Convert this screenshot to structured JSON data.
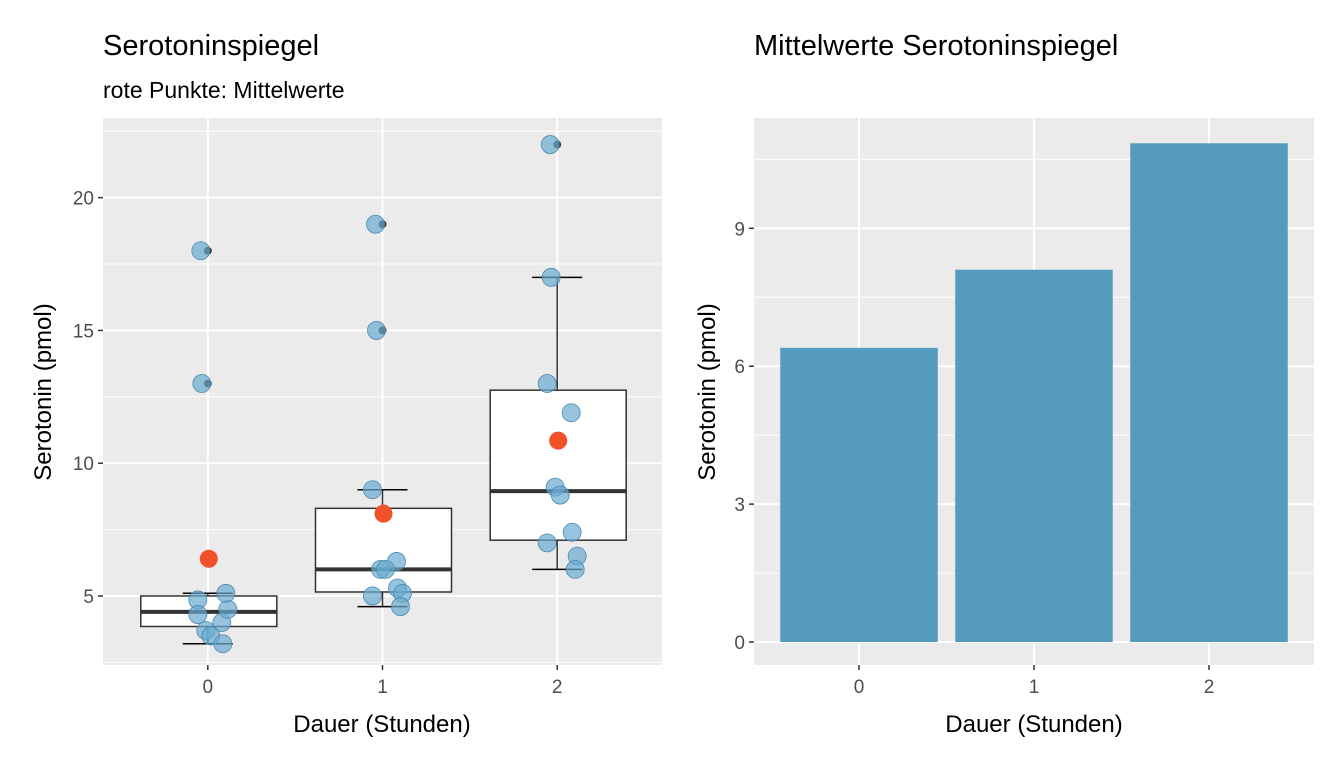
{
  "chart_data": [
    {
      "type": "box",
      "title": "Serotoninspiegel",
      "subtitle": "rote Punkte: Mittelwerte",
      "xlabel": "Dauer (Stunden)",
      "ylabel": "Serotonin (pmol)",
      "categories": [
        "0",
        "1",
        "2"
      ],
      "ylim": [
        2.4,
        23.0
      ],
      "yticks": [
        "5",
        "10",
        "15",
        "20"
      ],
      "grid": true,
      "boxes": [
        {
          "category": "0",
          "whisker_low": 3.2,
          "q1": 3.85,
          "median": 4.4,
          "q3": 5.0,
          "whisker_high": 5.1,
          "mean": 6.4,
          "outliers": [
            13,
            18
          ]
        },
        {
          "category": "1",
          "whisker_low": 4.6,
          "q1": 5.15,
          "median": 6.0,
          "q3": 8.3,
          "whisker_high": 9.0,
          "mean": 8.1,
          "outliers": [
            15,
            19
          ]
        },
        {
          "category": "2",
          "whisker_low": 6.0,
          "q1": 7.1,
          "median": 8.95,
          "q3": 12.75,
          "whisker_high": 17.0,
          "mean": 10.85,
          "outliers": [
            22
          ]
        }
      ],
      "points": [
        {
          "category": "0",
          "values": [
            18.0,
            13.0,
            4.85,
            4.0,
            3.7,
            3.5,
            3.2,
            4.3,
            4.5,
            5.1
          ]
        },
        {
          "category": "1",
          "values": [
            19.0,
            15.0,
            9.0,
            6.3,
            6.0,
            6.0,
            5.3,
            5.0,
            5.1,
            4.6
          ]
        },
        {
          "category": "2",
          "values": [
            22.0,
            17.0,
            13.0,
            11.9,
            9.1,
            8.8,
            7.4,
            7.0,
            6.5,
            6.0
          ]
        }
      ],
      "colors": {
        "points": "#6aabd2",
        "mean": "#f0502a",
        "outlier": "#333333"
      }
    },
    {
      "type": "bar",
      "title": "Mittelwerte Serotoninspiegel",
      "xlabel": "Dauer (Stunden)",
      "ylabel": "Serotonin (pmol)",
      "categories": [
        "0",
        "1",
        "2"
      ],
      "values": [
        6.4,
        8.1,
        10.85
      ],
      "ylim": [
        -0.5,
        11.4
      ],
      "yticks": [
        "0",
        "3",
        "6",
        "9"
      ],
      "grid": true,
      "colors": {
        "bar": "#559bbe"
      }
    }
  ]
}
